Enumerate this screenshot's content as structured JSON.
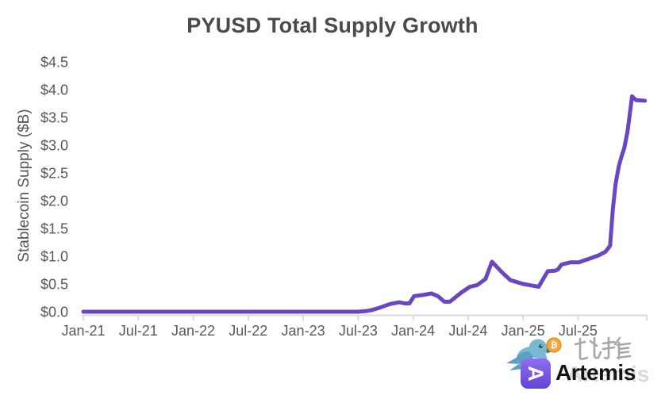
{
  "chart_data": {
    "type": "line",
    "title": "PYUSD Total Supply Growth",
    "xlabel": "",
    "ylabel": "Stablecoin Supply ($B)",
    "grid": false,
    "legend": "none",
    "x_axis": {
      "unit": "months since Jan-2021",
      "max": 61.5,
      "tick_positions": [
        0,
        6,
        12,
        18,
        24,
        30,
        36,
        42,
        48,
        54
      ],
      "tick_labels": [
        "Jan-21",
        "Jul-21",
        "Jan-22",
        "Jul-22",
        "Jan-23",
        "Jul-23",
        "Jan-24",
        "Jul-24",
        "Jan-25",
        "Jul-25"
      ]
    },
    "y_axis": {
      "min": 0,
      "max": 4.5,
      "step": 0.5,
      "tick_labels": [
        "$0.0",
        "$0.5",
        "$1.0",
        "$1.5",
        "$2.0",
        "$2.5",
        "$3.0",
        "$3.5",
        "$4.0",
        "$4.5"
      ]
    },
    "series": [
      {
        "name": "PYUSD Total Supply",
        "unit": "$B",
        "color": "#6b46c1",
        "points": [
          [
            0,
            0
          ],
          [
            6,
            0
          ],
          [
            12,
            0
          ],
          [
            18,
            0
          ],
          [
            24,
            0
          ],
          [
            30,
            0
          ],
          [
            30.8,
            0.01
          ],
          [
            31.5,
            0.03
          ],
          [
            32.3,
            0.07
          ],
          [
            33.5,
            0.14
          ],
          [
            34.5,
            0.17
          ],
          [
            35.1,
            0.15
          ],
          [
            35.6,
            0.15
          ],
          [
            36.1,
            0.28
          ],
          [
            37,
            0.3
          ],
          [
            38,
            0.33
          ],
          [
            38.7,
            0.28
          ],
          [
            39.4,
            0.18
          ],
          [
            40,
            0.18
          ],
          [
            41.3,
            0.35
          ],
          [
            42.2,
            0.45
          ],
          [
            43,
            0.48
          ],
          [
            43.9,
            0.59
          ],
          [
            44.6,
            0.9
          ],
          [
            45.7,
            0.71
          ],
          [
            46.6,
            0.57
          ],
          [
            47.2,
            0.54
          ],
          [
            48,
            0.5
          ],
          [
            49,
            0.47
          ],
          [
            49.7,
            0.45
          ],
          [
            50.2,
            0.59
          ],
          [
            50.7,
            0.73
          ],
          [
            51.5,
            0.74
          ],
          [
            51.8,
            0.76
          ],
          [
            52.2,
            0.85
          ],
          [
            52.7,
            0.87
          ],
          [
            53.2,
            0.89
          ],
          [
            54.1,
            0.89
          ],
          [
            54.6,
            0.92
          ],
          [
            55.5,
            0.97
          ],
          [
            56.3,
            1.02
          ],
          [
            57,
            1.08
          ],
          [
            57.5,
            1.19
          ],
          [
            57.8,
            1.85
          ],
          [
            58.1,
            2.3
          ],
          [
            58.45,
            2.62
          ],
          [
            58.75,
            2.8
          ],
          [
            59.05,
            2.95
          ],
          [
            59.4,
            3.25
          ],
          [
            59.6,
            3.5
          ],
          [
            59.9,
            3.88
          ],
          [
            60.35,
            3.81
          ],
          [
            61.3,
            3.8
          ]
        ]
      }
    ]
  },
  "colors": {
    "background": "#ffffff",
    "line": "#6b46c1",
    "axis": "#d9d9d9",
    "tick_text": "#595959",
    "title_text": "#4a4a4a"
  },
  "watermark": {
    "bitpush_text": "比推",
    "artemis_text": "Artemis",
    "artemis_ghost_text": "Artemis",
    "bitcoin_symbol": "₿",
    "colors": {
      "bird": "#79b7d2",
      "bird_dark": "#5d9fbe",
      "beak": "#2e6f8e",
      "coin": "#f3a73d",
      "coin_border": "#de921f",
      "logo_purple_top": "#8f6df4",
      "logo_purple_bottom": "#6443d4",
      "hanzi": "#a3a3a3",
      "artemis_text_color": "#141414"
    }
  }
}
